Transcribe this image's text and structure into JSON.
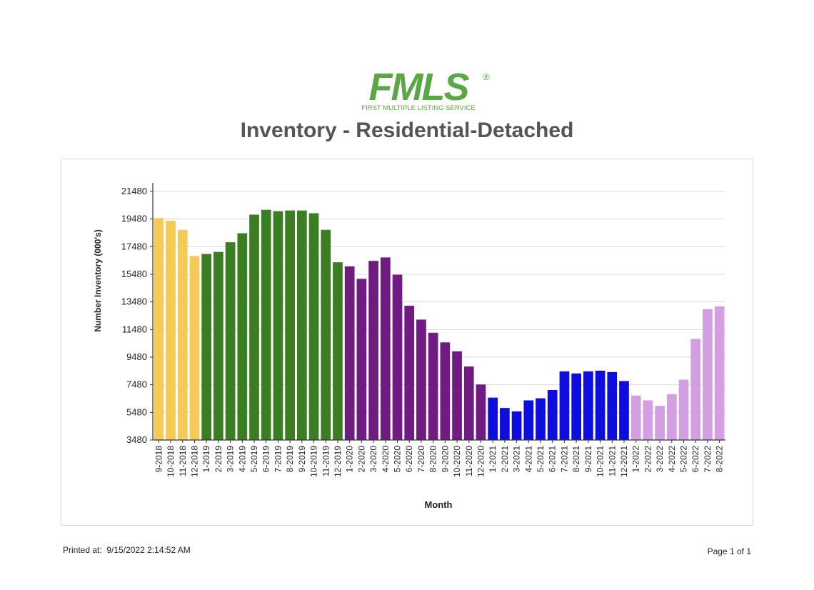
{
  "logo": {
    "brand": "FMLS",
    "registered": "®",
    "tagline": "FIRST MULTIPLE LISTING SERVICE",
    "color": "#5aa845"
  },
  "footer": {
    "printed_label": "Printed at:",
    "printed_value": "9/15/2022 2:14:52 AM",
    "page_label": "Page 1 of 1"
  },
  "chart_data": {
    "type": "bar",
    "title": "Inventory - Residential-Detached",
    "xlabel": "Month",
    "ylabel": "Number Inventory (000's)",
    "ylim": [
      3480,
      21480
    ],
    "yticks": [
      3480,
      5480,
      7480,
      9480,
      11480,
      13480,
      15480,
      17480,
      19480,
      21480
    ],
    "grid": true,
    "categories": [
      "9-2018",
      "10-2018",
      "11-2018",
      "12-2018",
      "1-2019",
      "2-2019",
      "3-2019",
      "4-2019",
      "5-2019",
      "6-2019",
      "7-2019",
      "8-2019",
      "9-2019",
      "10-2019",
      "11-2019",
      "12-2019",
      "1-2020",
      "2-2020",
      "3-2020",
      "4-2020",
      "5-2020",
      "6-2020",
      "7-2020",
      "8-2020",
      "9-2020",
      "10-2020",
      "11-2020",
      "12-2020",
      "1-2021",
      "2-2021",
      "3-2021",
      "4-2021",
      "5-2021",
      "6-2021",
      "7-2021",
      "8-2021",
      "9-2021",
      "10-2021",
      "11-2021",
      "12-2021",
      "1-2022",
      "2-2022",
      "3-2022",
      "4-2022",
      "5-2022",
      "6-2022",
      "7-2022",
      "8-2022"
    ],
    "values": [
      19550,
      19350,
      18700,
      16800,
      16950,
      17100,
      17800,
      18450,
      19800,
      20150,
      20050,
      20100,
      20100,
      19900,
      18700,
      16350,
      16050,
      15150,
      16450,
      16700,
      15450,
      13200,
      12200,
      11250,
      10550,
      9900,
      8800,
      7500,
      6550,
      5800,
      5550,
      6350,
      6500,
      7100,
      8450,
      8300,
      8450,
      8500,
      8400,
      7750,
      6700,
      6350,
      5950,
      6800,
      7850,
      10800,
      12950,
      13150
    ],
    "bar_colors": [
      "#f5cb58",
      "#f5cb58",
      "#f5cb58",
      "#f5cb58",
      "#3b7d23",
      "#3b7d23",
      "#3b7d23",
      "#3b7d23",
      "#3b7d23",
      "#3b7d23",
      "#3b7d23",
      "#3b7d23",
      "#3b7d23",
      "#3b7d23",
      "#3b7d23",
      "#3b7d23",
      "#701b82",
      "#701b82",
      "#701b82",
      "#701b82",
      "#701b82",
      "#701b82",
      "#701b82",
      "#701b82",
      "#701b82",
      "#701b82",
      "#701b82",
      "#701b82",
      "#0d0de0",
      "#0d0de0",
      "#0d0de0",
      "#0d0de0",
      "#0d0de0",
      "#0d0de0",
      "#0d0de0",
      "#0d0de0",
      "#0d0de0",
      "#0d0de0",
      "#0d0de0",
      "#0d0de0",
      "#d49fe0",
      "#d49fe0",
      "#d49fe0",
      "#d49fe0",
      "#d49fe0",
      "#d49fe0",
      "#d49fe0",
      "#d49fe0"
    ]
  }
}
